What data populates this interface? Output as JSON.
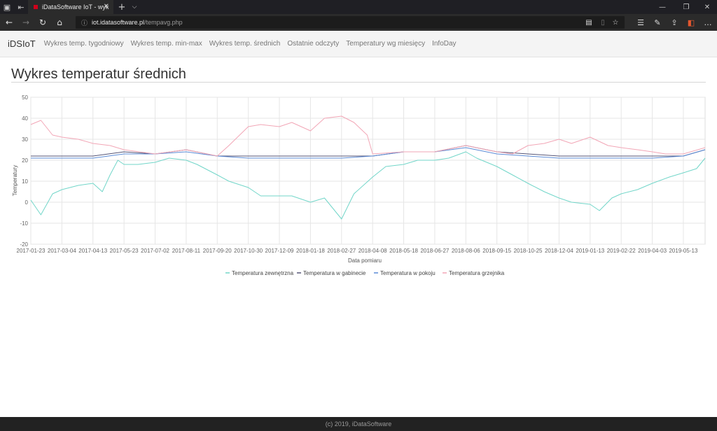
{
  "browser": {
    "tab_title": "iDataSoftware IoT - wyk",
    "url_host": "iot.idatasoftware.pl",
    "url_path": "/tempavg.php",
    "icons": [
      "tab-actions-icon",
      "set-aside-tabs-icon",
      "close-icon",
      "new-tab-icon",
      "tab-menu-icon",
      "back-icon",
      "forward-icon",
      "refresh-icon",
      "home-icon",
      "info-icon",
      "reading-view-icon",
      "book-icon",
      "star-icon",
      "favorites-icon",
      "pen-icon",
      "share-icon",
      "office-icon",
      "more-icon"
    ]
  },
  "nav": {
    "brand": "iDSIoT",
    "links": [
      "Wykres temp. tygodniowy",
      "Wykres temp. min-max",
      "Wykres temp. średnich",
      "Ostatnie odczyty",
      "Temperatury wg miesięcy",
      "InfoDay"
    ]
  },
  "page": {
    "title": "Wykres temperatur średnich"
  },
  "chart_data": {
    "type": "line",
    "xlabel": "Data pomiaru",
    "ylabel": "Temperatury",
    "ylim": [
      -20,
      50
    ],
    "yticks": [
      -20,
      -10,
      0,
      10,
      20,
      30,
      40,
      50
    ],
    "x_tick_labels": [
      "2017-01-23",
      "2017-03-04",
      "2017-04-13",
      "2017-05-23",
      "2017-07-02",
      "2017-08-11",
      "2017-09-20",
      "2017-10-30",
      "2017-12-09",
      "2018-01-18",
      "2018-02-27",
      "2018-04-08",
      "2018-05-18",
      "2018-06-27",
      "2018-08-06",
      "2018-09-15",
      "2018-10-25",
      "2018-12-04",
      "2019-01-13",
      "2019-02-22",
      "2019-04-03",
      "2019-05-13"
    ],
    "x_range": [
      "2017-01-23",
      "2019-06-10"
    ],
    "grid": true,
    "legend_position": "bottom",
    "series": [
      {
        "name": "Temperatura zewnętrzna",
        "color": "#72d6c9",
        "points": [
          [
            "2017-01-23",
            1
          ],
          [
            "2017-02-05",
            -6
          ],
          [
            "2017-02-20",
            4
          ],
          [
            "2017-03-04",
            6
          ],
          [
            "2017-03-25",
            8
          ],
          [
            "2017-04-13",
            9
          ],
          [
            "2017-04-25",
            5
          ],
          [
            "2017-05-05",
            13
          ],
          [
            "2017-05-15",
            20
          ],
          [
            "2017-05-23",
            18
          ],
          [
            "2017-06-10",
            18
          ],
          [
            "2017-07-02",
            19
          ],
          [
            "2017-07-20",
            21
          ],
          [
            "2017-08-11",
            20
          ],
          [
            "2017-08-25",
            18
          ],
          [
            "2017-09-20",
            13
          ],
          [
            "2017-10-05",
            10
          ],
          [
            "2017-10-30",
            7
          ],
          [
            "2017-11-15",
            3
          ],
          [
            "2017-12-09",
            3
          ],
          [
            "2017-12-25",
            3
          ],
          [
            "2018-01-18",
            0
          ],
          [
            "2018-02-05",
            2
          ],
          [
            "2018-02-27",
            -8
          ],
          [
            "2018-03-15",
            4
          ],
          [
            "2018-04-08",
            12
          ],
          [
            "2018-04-25",
            17
          ],
          [
            "2018-05-18",
            18
          ],
          [
            "2018-06-05",
            20
          ],
          [
            "2018-06-27",
            20
          ],
          [
            "2018-07-15",
            21
          ],
          [
            "2018-08-06",
            24
          ],
          [
            "2018-08-20",
            21
          ],
          [
            "2018-09-15",
            17
          ],
          [
            "2018-10-05",
            13
          ],
          [
            "2018-10-25",
            9
          ],
          [
            "2018-11-15",
            5
          ],
          [
            "2018-12-04",
            2
          ],
          [
            "2018-12-20",
            0
          ],
          [
            "2019-01-13",
            -1
          ],
          [
            "2019-01-25",
            -4
          ],
          [
            "2019-02-10",
            2
          ],
          [
            "2019-02-22",
            4
          ],
          [
            "2019-03-15",
            6
          ],
          [
            "2019-04-03",
            9
          ],
          [
            "2019-04-25",
            12
          ],
          [
            "2019-05-13",
            14
          ],
          [
            "2019-05-30",
            16
          ],
          [
            "2019-06-10",
            21
          ]
        ]
      },
      {
        "name": "Temperatura w gabinecie",
        "color": "#555577",
        "points": [
          [
            "2017-01-23",
            22
          ],
          [
            "2017-04-13",
            22
          ],
          [
            "2017-05-23",
            24
          ],
          [
            "2017-07-02",
            23
          ],
          [
            "2017-08-11",
            25
          ],
          [
            "2017-09-20",
            22
          ],
          [
            "2017-10-30",
            22
          ],
          [
            "2017-12-09",
            22
          ],
          [
            "2018-01-18",
            22
          ],
          [
            "2018-02-27",
            22
          ],
          [
            "2018-04-08",
            22
          ],
          [
            "2018-05-18",
            24
          ],
          [
            "2018-06-27",
            24
          ],
          [
            "2018-08-06",
            27
          ],
          [
            "2018-09-15",
            24
          ],
          [
            "2018-10-25",
            23
          ],
          [
            "2018-12-04",
            22
          ],
          [
            "2019-01-13",
            22
          ],
          [
            "2019-02-22",
            22
          ],
          [
            "2019-04-03",
            22
          ],
          [
            "2019-05-13",
            22
          ],
          [
            "2019-06-10",
            25
          ]
        ]
      },
      {
        "name": "Temperatura w pokoju",
        "color": "#5b8bd6",
        "points": [
          [
            "2017-01-23",
            21
          ],
          [
            "2017-04-13",
            21
          ],
          [
            "2017-05-23",
            23
          ],
          [
            "2017-07-02",
            23
          ],
          [
            "2017-08-11",
            24
          ],
          [
            "2017-09-20",
            22
          ],
          [
            "2017-10-30",
            21
          ],
          [
            "2017-12-09",
            21
          ],
          [
            "2018-01-18",
            21
          ],
          [
            "2018-02-27",
            21
          ],
          [
            "2018-04-08",
            22
          ],
          [
            "2018-05-18",
            24
          ],
          [
            "2018-06-27",
            24
          ],
          [
            "2018-08-06",
            26
          ],
          [
            "2018-09-15",
            23
          ],
          [
            "2018-10-25",
            22
          ],
          [
            "2018-12-04",
            21
          ],
          [
            "2019-01-13",
            21
          ],
          [
            "2019-02-22",
            21
          ],
          [
            "2019-04-03",
            21
          ],
          [
            "2019-05-13",
            22
          ],
          [
            "2019-06-10",
            25
          ]
        ]
      },
      {
        "name": "Temperatura grzejnika",
        "color": "#f2a6b6",
        "points": [
          [
            "2017-01-23",
            37
          ],
          [
            "2017-02-05",
            39
          ],
          [
            "2017-02-20",
            32
          ],
          [
            "2017-03-04",
            31
          ],
          [
            "2017-03-25",
            30
          ],
          [
            "2017-04-13",
            28
          ],
          [
            "2017-05-05",
            27
          ],
          [
            "2017-05-23",
            25
          ],
          [
            "2017-07-02",
            23
          ],
          [
            "2017-08-11",
            25
          ],
          [
            "2017-09-20",
            22
          ],
          [
            "2017-10-05",
            27
          ],
          [
            "2017-10-30",
            36
          ],
          [
            "2017-11-15",
            37
          ],
          [
            "2017-12-09",
            36
          ],
          [
            "2017-12-25",
            38
          ],
          [
            "2018-01-18",
            34
          ],
          [
            "2018-02-05",
            40
          ],
          [
            "2018-02-27",
            41
          ],
          [
            "2018-03-15",
            38
          ],
          [
            "2018-04-01",
            32
          ],
          [
            "2018-04-08",
            23
          ],
          [
            "2018-05-18",
            24
          ],
          [
            "2018-06-27",
            24
          ],
          [
            "2018-08-06",
            27
          ],
          [
            "2018-09-15",
            24
          ],
          [
            "2018-10-05",
            23
          ],
          [
            "2018-10-25",
            27
          ],
          [
            "2018-11-15",
            28
          ],
          [
            "2018-12-04",
            30
          ],
          [
            "2018-12-20",
            28
          ],
          [
            "2019-01-13",
            31
          ],
          [
            "2019-02-05",
            27
          ],
          [
            "2019-02-22",
            26
          ],
          [
            "2019-03-15",
            25
          ],
          [
            "2019-04-03",
            24
          ],
          [
            "2019-04-20",
            23
          ],
          [
            "2019-05-13",
            23
          ],
          [
            "2019-06-10",
            26
          ]
        ]
      }
    ]
  },
  "footer": {
    "text": "(c) 2019, iDataSoftware"
  }
}
